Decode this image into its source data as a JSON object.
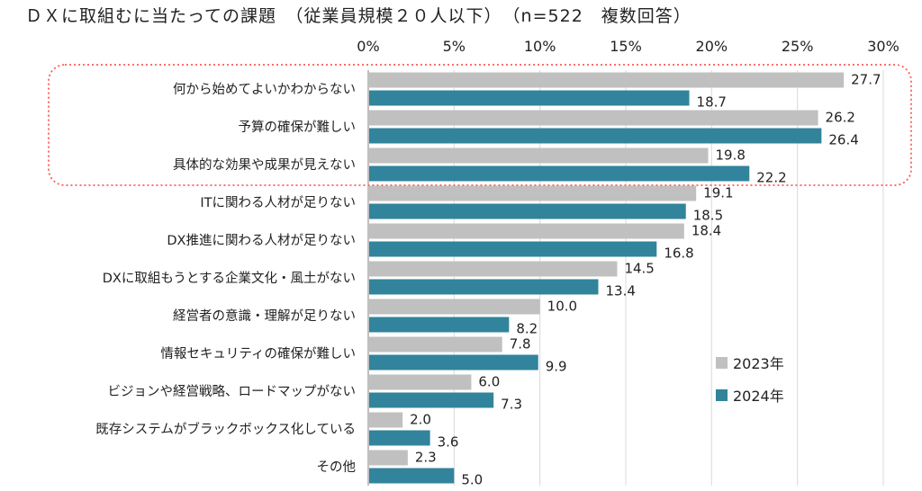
{
  "chart_data": {
    "type": "bar",
    "orientation": "horizontal",
    "title": "ＤＸに取組むに当たっての課題　（従業員規模２０人以下）　（n=522　複数回答）",
    "xlim": [
      0,
      30
    ],
    "xticks": [
      "0%",
      "5%",
      "10%",
      "15%",
      "20%",
      "25%",
      "30%"
    ],
    "xtick_values": [
      0,
      5,
      10,
      15,
      20,
      25,
      30
    ],
    "grid": true,
    "legend_position": "right",
    "categories": [
      "何から始めてよいかわからない",
      "予算の確保が難しい",
      "具体的な効果や成果が見えない",
      "ITに関わる人材が足りない",
      "DX推進に関わる人材が足りない",
      "DXに取組もうとする企業文化・風土がない",
      "経営者の意識・理解が足りない",
      "情報セキュリティの確保が難しい",
      "ビジョンや経営戦略、ロードマップがない",
      "既存システムがブラックボックス化している",
      "その他"
    ],
    "series": [
      {
        "name": "2023年",
        "color": "#c0c0c0",
        "values": [
          27.7,
          26.2,
          19.8,
          19.1,
          18.4,
          14.5,
          10.0,
          7.8,
          6.0,
          2.0,
          2.3
        ],
        "labels": [
          "27.7",
          "26.2",
          "19.8",
          "19.1",
          "18.4",
          "14.5",
          "10.0",
          "7.8",
          "6.0",
          "2.0",
          "2.3"
        ]
      },
      {
        "name": "2024年",
        "color": "#31849b",
        "values": [
          18.7,
          26.4,
          22.2,
          18.5,
          16.8,
          13.4,
          8.2,
          9.9,
          7.3,
          3.6,
          5.0
        ],
        "labels": [
          "18.7",
          "26.4",
          "22.2",
          "18.5",
          "16.8",
          "13.4",
          "8.2",
          "9.9",
          "7.3",
          "3.6",
          "5.0"
        ]
      }
    ],
    "highlight_color": "#ff5a5a"
  }
}
